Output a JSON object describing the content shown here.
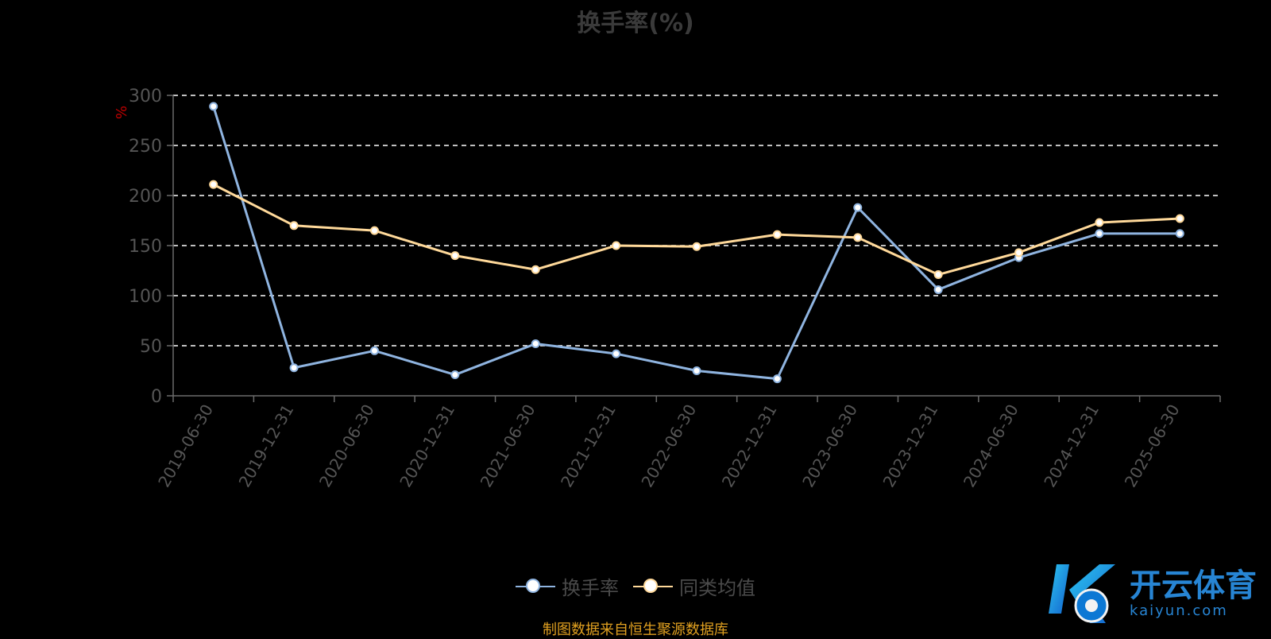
{
  "chart_data": {
    "type": "line",
    "title": "换手率(%)",
    "ylabel": "%",
    "xlabel": "",
    "categories": [
      "2019-06-30",
      "2019-12-31",
      "2020-06-30",
      "2020-12-31",
      "2021-06-30",
      "2021-12-31",
      "2022-06-30",
      "2022-12-31",
      "2023-06-30",
      "2023-12-31",
      "2024-06-30",
      "2024-12-31",
      "2025-06-30"
    ],
    "ylim": [
      0,
      300
    ],
    "yticks": [
      0,
      50,
      100,
      150,
      200,
      250,
      300
    ],
    "grid": true,
    "legend_position": "bottom",
    "series": [
      {
        "name": "换手率",
        "color": "#8fb4e0",
        "values": [
          289,
          28,
          45,
          21,
          52,
          42,
          25,
          17,
          188,
          106,
          138,
          162,
          162
        ]
      },
      {
        "name": "同类均值",
        "color": "#ffd99a",
        "values": [
          211,
          170,
          165,
          140,
          126,
          150,
          149,
          161,
          158,
          121,
          143,
          173,
          177
        ]
      }
    ]
  },
  "footer": {
    "source_text": "制图数据来自恒生聚源数据库"
  },
  "watermark": {
    "cn_text": "开云体育",
    "en_text": "kaiyun.com"
  },
  "colors": {
    "background": "#000000",
    "grid": "#ffffff",
    "axis": "#6b6b6b",
    "tick_label": "#555555",
    "title": "#3a3a3a",
    "unit": "#c00000",
    "source": "#e0a020",
    "brand": "#2a8de0"
  }
}
